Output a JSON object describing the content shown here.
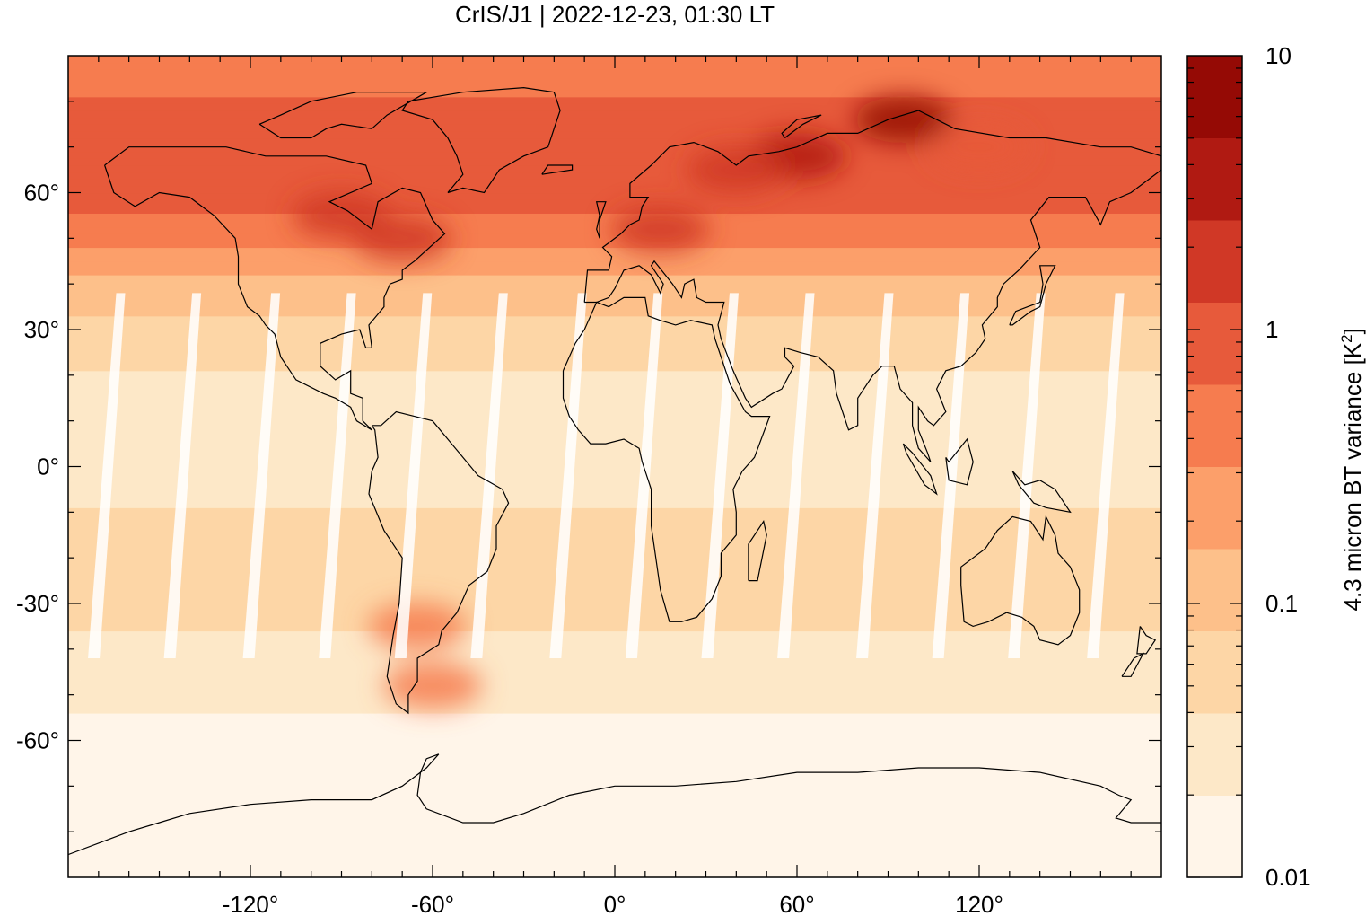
{
  "title": "CrIS/J1 | 2022-12-23, 01:30 LT",
  "colorbar": {
    "label_main": "4.3 micron BT variance [K",
    "label_sup": "2",
    "label_end": "]",
    "scale": "log",
    "range": [
      0.01,
      10
    ],
    "tick_labels": [
      "10",
      "1",
      "0.1",
      "0.01"
    ],
    "levels": [
      0.01,
      0.02,
      0.04,
      0.08,
      0.15,
      0.3,
      0.6,
      1.2,
      2.5,
      5,
      10
    ],
    "colors": [
      "#fff5e9",
      "#fde8c8",
      "#fdd6a6",
      "#fdc08a",
      "#fc9f6a",
      "#f67c4f",
      "#e75a3b",
      "#d03826",
      "#b01a12",
      "#950a05"
    ]
  },
  "chart_data": {
    "type": "heatmap",
    "title": "CrIS/J1 | 2022-12-23, 01:30 LT",
    "xlabel": "",
    "ylabel": "",
    "xlim": [
      -180,
      180
    ],
    "ylim": [
      -90,
      90
    ],
    "x_ticks": [
      "-120°",
      "-60°",
      "0°",
      "60°",
      "120°"
    ],
    "y_ticks": [
      "60°",
      "30°",
      "0°",
      "-30°",
      "-60°"
    ],
    "x_tick_values": [
      -120,
      -60,
      0,
      60,
      120
    ],
    "y_tick_values": [
      60,
      30,
      0,
      -30,
      -60
    ],
    "colorbar_label": "4.3 micron BT variance [K^2]",
    "zlim": [
      0.01,
      10
    ],
    "zscale": "log",
    "zonal_profile": {
      "lat": [
        -90,
        -60,
        -45,
        -30,
        -15,
        0,
        15,
        30,
        45,
        55,
        65,
        75,
        90
      ],
      "variance": [
        0.01,
        0.015,
        0.03,
        0.05,
        0.05,
        0.03,
        0.03,
        0.06,
        0.2,
        0.6,
        1.0,
        0.8,
        0.4
      ]
    },
    "hotspots": [
      {
        "lon": 60,
        "lat": 68,
        "variance": 3.0
      },
      {
        "lon": 95,
        "lat": 76,
        "variance": 5.0
      },
      {
        "lon": -90,
        "lat": 55,
        "variance": 1.5
      },
      {
        "lon": -70,
        "lat": 50,
        "variance": 1.2
      },
      {
        "lon": 15,
        "lat": 52,
        "variance": 1.5
      },
      {
        "lon": 40,
        "lat": 65,
        "variance": 1.3
      },
      {
        "lon": -60,
        "lat": -48,
        "variance": 0.4
      },
      {
        "lon": -65,
        "lat": -35,
        "variance": 0.3
      },
      {
        "lon": 120,
        "lat": 70,
        "variance": 1.0
      }
    ]
  }
}
